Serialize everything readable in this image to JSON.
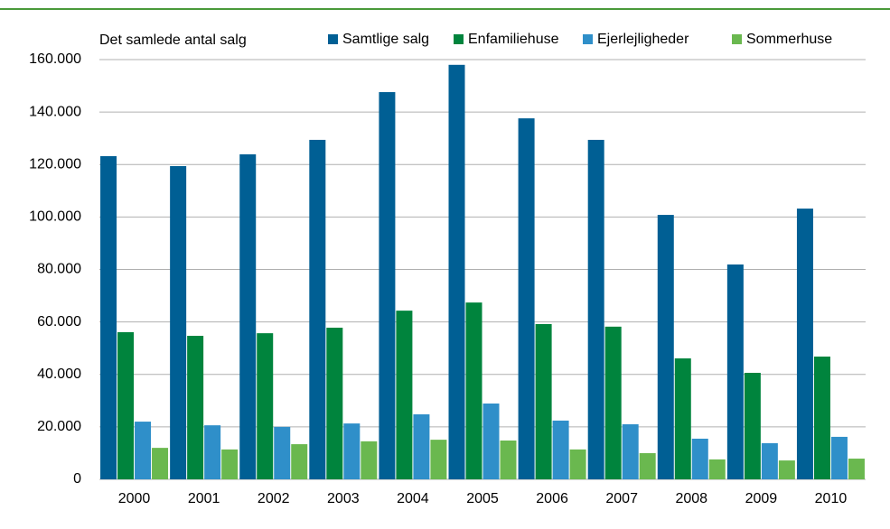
{
  "chart_data": {
    "type": "bar",
    "y_axis_label": "Det samlede antal salg",
    "categories": [
      "2000",
      "2001",
      "2002",
      "2003",
      "2004",
      "2005",
      "2006",
      "2007",
      "2008",
      "2009",
      "2010"
    ],
    "series": [
      {
        "name": "Samtlige salg",
        "color": "#005f94",
        "values": [
          123200,
          119400,
          123900,
          129400,
          147600,
          158000,
          137600,
          129400,
          100800,
          81900,
          103200
        ]
      },
      {
        "name": "Enfamiliehuse",
        "color": "#00843d",
        "values": [
          56100,
          54700,
          55700,
          57800,
          64300,
          67400,
          59200,
          58200,
          46100,
          40600,
          46800
        ]
      },
      {
        "name": "Ejerlejligheder",
        "color": "#2f8fc9",
        "values": [
          22000,
          20600,
          20000,
          21300,
          24800,
          28900,
          22400,
          21000,
          15500,
          13800,
          16200
        ]
      },
      {
        "name": "Sommerhuse",
        "color": "#6ab84f",
        "values": [
          12000,
          11400,
          13400,
          14500,
          15100,
          14800,
          11400,
          10000,
          7600,
          7200,
          7900
        ]
      }
    ],
    "ylim": [
      0,
      160000
    ],
    "yticks": [
      0,
      {
        "value": 20000,
        "label": "20.000"
      },
      {
        "value": 40000,
        "label": "40.000"
      },
      {
        "value": 60000,
        "label": "60.000"
      },
      {
        "value": 80000,
        "label": "80.000"
      },
      {
        "value": 100000,
        "label": "100.000"
      },
      {
        "value": 120000,
        "label": "120.000"
      },
      {
        "value": 140000,
        "label": "140.000"
      },
      {
        "value": 160000,
        "label": "160.000"
      }
    ],
    "grid": true,
    "legend": "top-right"
  }
}
